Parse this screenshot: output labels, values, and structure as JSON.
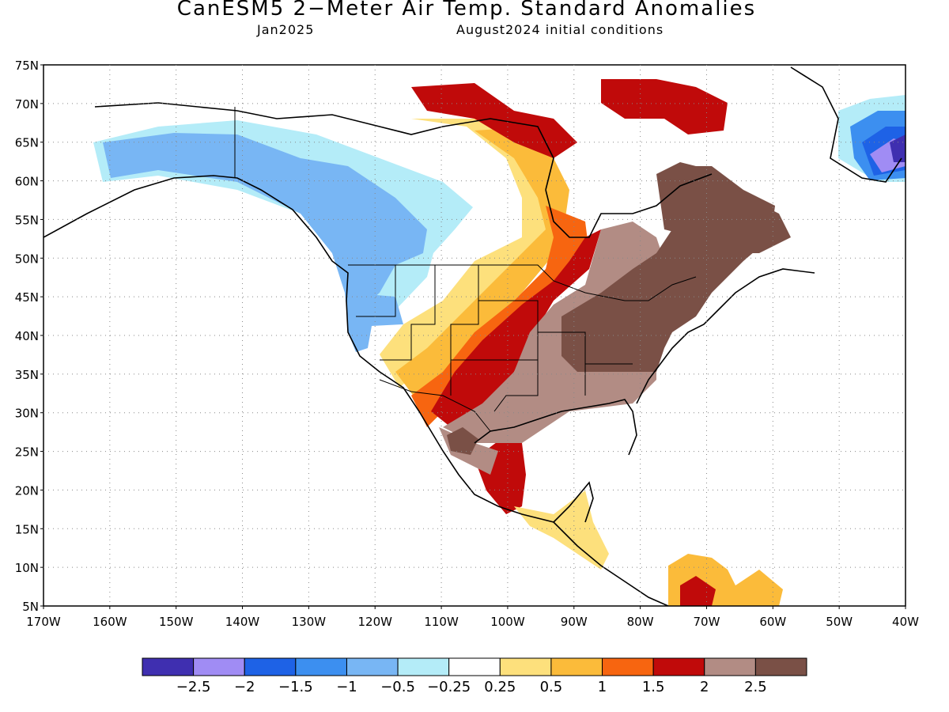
{
  "title": "CanESM5 2−Meter Air Temp. Standard Anomalies",
  "subtitle_left": "Jan2025",
  "subtitle_right": "August2024 initial conditions",
  "map": {
    "lon_range": [
      -170,
      -40
    ],
    "lat_range": [
      5,
      75
    ],
    "lat_ticks": [
      "75N",
      "70N",
      "65N",
      "60N",
      "55N",
      "50N",
      "45N",
      "40N",
      "35N",
      "30N",
      "25N",
      "20N",
      "15N",
      "10N",
      "5N"
    ],
    "lon_ticks": [
      "170W",
      "160W",
      "150W",
      "140W",
      "130W",
      "120W",
      "110W",
      "100W",
      "90W",
      "80W",
      "70W",
      "60W",
      "50W",
      "40W"
    ],
    "grid": "dotted"
  },
  "legend": {
    "colors": [
      "#3f2fb0",
      "#a08cf4",
      "#1e62e6",
      "#3c8ff0",
      "#78b6f4",
      "#b4ecf8",
      "#ffffff",
      "#fde07c",
      "#fbbb3a",
      "#f76510",
      "#c00a0a",
      "#b28c84",
      "#7a5046"
    ],
    "labels": [
      "−2.5",
      "−2",
      "−1.5",
      "−1",
      "−0.5",
      "−0.25",
      "0.25",
      "0.5",
      "1",
      "1.5",
      "2",
      "2.5"
    ]
  }
}
